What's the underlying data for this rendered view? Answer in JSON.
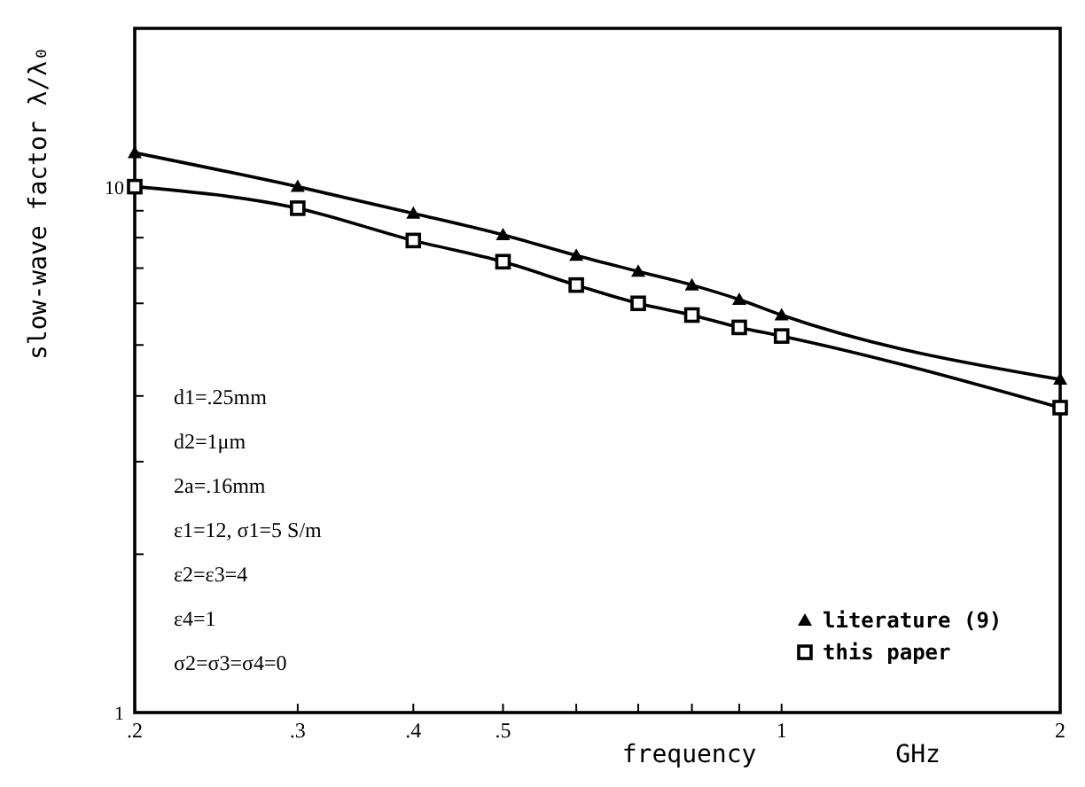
{
  "chart_data": {
    "type": "line",
    "xlabel": "frequency GHz",
    "ylabel": "slow-wave factor  λ/λ₀",
    "log": "xy",
    "xlim": [
      0.2,
      2
    ],
    "ylim": [
      1,
      20
    ],
    "xticks": [
      {
        "value": 0.2,
        "label": ".2"
      },
      {
        "value": 0.3,
        "label": ".3"
      },
      {
        "value": 0.4,
        "label": ".4"
      },
      {
        "value": 0.5,
        "label": ".5"
      },
      {
        "value": 0.6,
        "label": null
      },
      {
        "value": 0.7,
        "label": null
      },
      {
        "value": 0.8,
        "label": null
      },
      {
        "value": 0.9,
        "label": null
      },
      1,
      2
    ],
    "yticks": [
      1,
      {
        "value": 2,
        "label": null
      },
      {
        "value": 3,
        "label": null
      },
      {
        "value": 4,
        "label": null
      },
      {
        "value": 5,
        "label": null
      },
      {
        "value": 6,
        "label": null
      },
      {
        "value": 7,
        "label": null
      },
      {
        "value": 8,
        "label": null
      },
      {
        "value": 9,
        "label": null
      },
      10
    ],
    "x": [
      0.2,
      0.3,
      0.4,
      0.5,
      0.6,
      0.7,
      0.8,
      0.9,
      1,
      2
    ],
    "series": [
      {
        "name": "literature (9)",
        "color": "#000000",
        "marker": "triangle",
        "values": [
          11.6,
          10.0,
          8.9,
          8.1,
          7.4,
          6.9,
          6.5,
          6.1,
          5.7,
          4.3
        ]
      },
      {
        "name": "this paper",
        "color": "#000000",
        "marker": "square",
        "values": [
          10.0,
          9.1,
          7.9,
          7.2,
          6.5,
          6.0,
          5.7,
          5.4,
          5.2,
          3.8
        ]
      }
    ],
    "legend": "bottom right",
    "grid": false,
    "line_style": "solid",
    "annotations": [
      "d1=.25mm",
      "d2=1μm",
      "2a=.16mm",
      "ε1=12,  σ1=5 S/m",
      "ε2=ε3=4",
      "ε4=1",
      "σ2=σ3=σ4=0"
    ]
  }
}
